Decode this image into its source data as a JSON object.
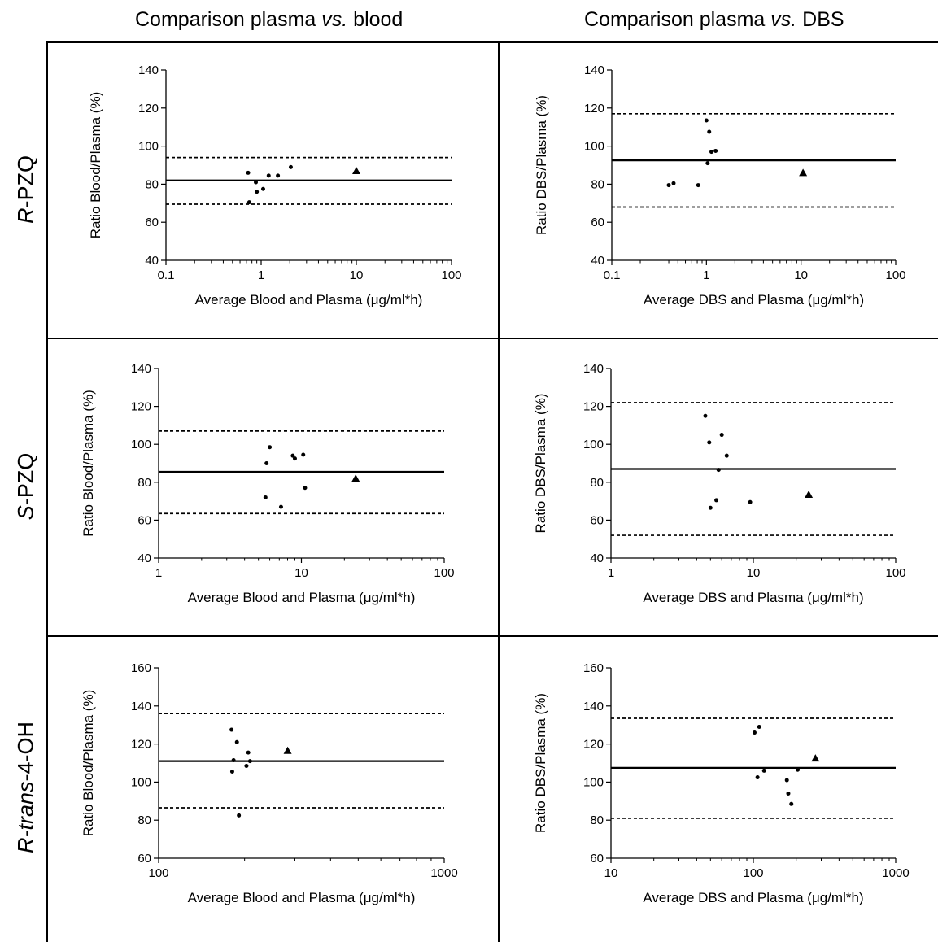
{
  "headers": {
    "columns": [
      {
        "pre": "Comparison plasma ",
        "em": "vs.",
        "post": " blood"
      },
      {
        "pre": "Comparison plasma ",
        "em": "vs.",
        "post": " DBS"
      }
    ],
    "rows": [
      {
        "pre": "",
        "em": "R",
        "post": "-PZQ"
      },
      {
        "pre": "",
        "em": "S",
        "post": "-PZQ"
      },
      {
        "pre": "",
        "em": "R-trans",
        "post": "-4-OH"
      }
    ]
  },
  "chart_data": [
    {
      "type": "scatter",
      "xscale": "log",
      "xlabel": "Average Blood and Plasma (μg/ml*h)",
      "ylabel": "Ratio Blood/Plasma (%)",
      "xlim": [
        0.1,
        100
      ],
      "xticks": [
        0.1,
        1,
        10,
        100
      ],
      "xtick_labels": [
        "0.1",
        "1",
        "10",
        "100"
      ],
      "ylim": [
        40,
        140
      ],
      "yticks": [
        40,
        60,
        80,
        100,
        120,
        140
      ],
      "mean": 82,
      "limits": [
        69.5,
        94
      ],
      "points": [
        [
          0.73,
          86
        ],
        [
          0.75,
          70.5
        ],
        [
          0.88,
          81
        ],
        [
          0.9,
          76
        ],
        [
          1.05,
          77.5
        ],
        [
          1.2,
          84.5
        ],
        [
          1.5,
          84.5
        ],
        [
          2.05,
          89
        ]
      ],
      "outlier": [
        10,
        87
      ]
    },
    {
      "type": "scatter",
      "xscale": "log",
      "xlabel": "Average DBS and Plasma (μg/ml*h)",
      "ylabel": "Ratio DBS/Plasma (%)",
      "xlim": [
        0.1,
        100
      ],
      "xticks": [
        0.1,
        1,
        10,
        100
      ],
      "xtick_labels": [
        "0.1",
        "1",
        "10",
        "100"
      ],
      "ylim": [
        40,
        140
      ],
      "yticks": [
        40,
        60,
        80,
        100,
        120,
        140
      ],
      "mean": 92.5,
      "limits": [
        68,
        117
      ],
      "points": [
        [
          0.4,
          79.5
        ],
        [
          0.45,
          80.5
        ],
        [
          0.82,
          79.5
        ],
        [
          1.0,
          113.5
        ],
        [
          1.03,
          91
        ],
        [
          1.07,
          107.5
        ],
        [
          1.13,
          97
        ],
        [
          1.25,
          97.5
        ]
      ],
      "outlier": [
        10.5,
        86
      ]
    },
    {
      "type": "scatter",
      "xscale": "log",
      "xlabel": "Average Blood and Plasma (μg/ml*h)",
      "ylabel": "Ratio Blood/Plasma (%)",
      "xlim": [
        1,
        100
      ],
      "xticks": [
        1,
        10,
        100
      ],
      "xtick_labels": [
        "1",
        "10",
        "100"
      ],
      "ylim": [
        40,
        140
      ],
      "yticks": [
        40,
        60,
        80,
        100,
        120,
        140
      ],
      "mean": 85.5,
      "limits": [
        63.5,
        107
      ],
      "points": [
        [
          5.6,
          72
        ],
        [
          5.7,
          90
        ],
        [
          6.0,
          98.5
        ],
        [
          7.2,
          67
        ],
        [
          8.7,
          94
        ],
        [
          9.0,
          92.5
        ],
        [
          10.3,
          94.5
        ],
        [
          10.6,
          77
        ]
      ],
      "outlier": [
        24,
        82
      ]
    },
    {
      "type": "scatter",
      "xscale": "log",
      "xlabel": "Average DBS and Plasma (μg/ml*h)",
      "ylabel": "Ratio DBS/Plasma (%)",
      "xlim": [
        1,
        100
      ],
      "xticks": [
        1,
        10,
        100
      ],
      "xtick_labels": [
        "1",
        "10",
        "100"
      ],
      "ylim": [
        40,
        140
      ],
      "yticks": [
        40,
        60,
        80,
        100,
        120,
        140
      ],
      "mean": 87,
      "limits": [
        52,
        122
      ],
      "points": [
        [
          4.6,
          115
        ],
        [
          4.9,
          101
        ],
        [
          5.0,
          66.5
        ],
        [
          5.5,
          70.5
        ],
        [
          5.7,
          86.5
        ],
        [
          6.0,
          105
        ],
        [
          6.5,
          94
        ],
        [
          9.5,
          69.5
        ]
      ],
      "outlier": [
        24.5,
        73.5
      ]
    },
    {
      "type": "scatter",
      "xscale": "log",
      "xlabel": "Average Blood and Plasma (μg/ml*h)",
      "ylabel": "Ratio Blood/Plasma (%)",
      "xlim": [
        100,
        1000
      ],
      "xticks": [
        100,
        1000
      ],
      "xtick_labels": [
        "100",
        "1000"
      ],
      "ylim": [
        60,
        160
      ],
      "yticks": [
        60,
        80,
        100,
        120,
        140,
        160
      ],
      "mean": 111,
      "limits": [
        86.5,
        136
      ],
      "points": [
        [
          180,
          127.5
        ],
        [
          181,
          105.5
        ],
        [
          183,
          111.5
        ],
        [
          188,
          121
        ],
        [
          191,
          82.5
        ],
        [
          203,
          108.5
        ],
        [
          206,
          115.5
        ],
        [
          209,
          111
        ]
      ],
      "outlier": [
        283,
        116.5
      ]
    },
    {
      "type": "scatter",
      "xscale": "log",
      "xlabel": "Average DBS and Plasma (μg/ml*h)",
      "ylabel": "Ratio DBS/Plasma (%)",
      "xlim": [
        10,
        1000
      ],
      "xticks": [
        10,
        100,
        1000
      ],
      "xtick_labels": [
        "10",
        "100",
        "1000"
      ],
      "ylim": [
        60,
        160
      ],
      "yticks": [
        60,
        80,
        100,
        120,
        140,
        160
      ],
      "mean": 107.5,
      "limits": [
        81,
        133.5
      ],
      "points": [
        [
          102,
          126
        ],
        [
          107,
          102.5
        ],
        [
          110,
          129
        ],
        [
          119,
          106
        ],
        [
          172,
          101
        ],
        [
          176,
          94
        ],
        [
          185,
          88.5
        ],
        [
          205,
          106.5
        ]
      ],
      "outlier": [
        273,
        112.5
      ]
    }
  ]
}
